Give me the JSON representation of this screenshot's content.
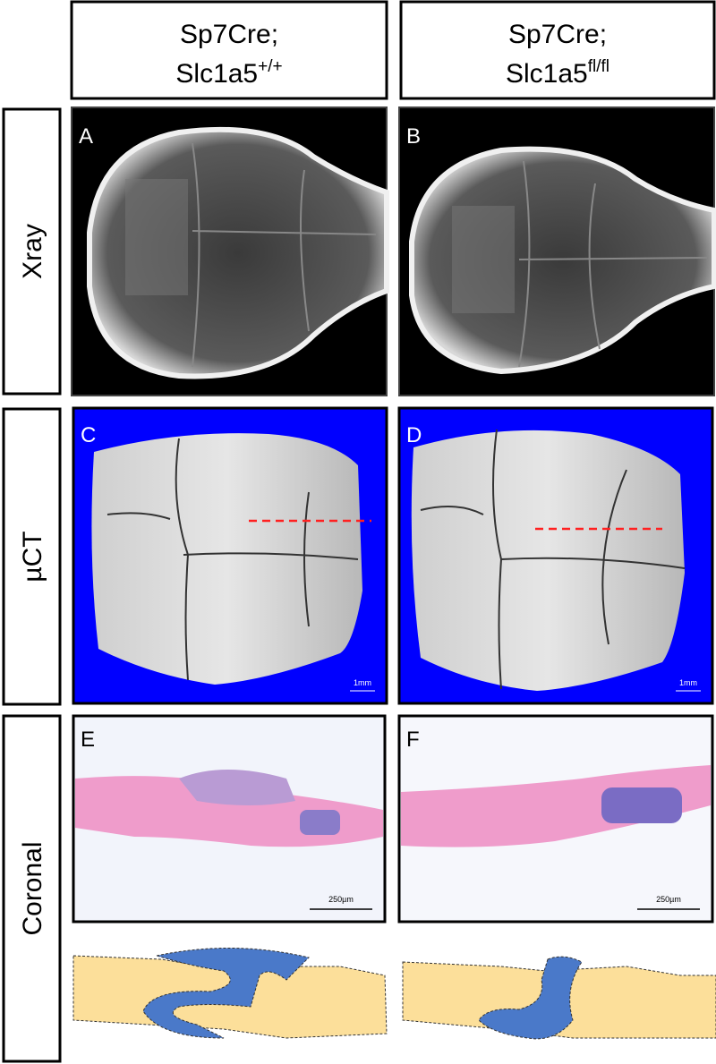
{
  "columns": [
    {
      "line1": "Sp7Cre;",
      "gene": "Slc1a5",
      "superscript": "+/+"
    },
    {
      "line1": "Sp7Cre;",
      "gene": "Slc1a5",
      "superscript": "fl/fl"
    }
  ],
  "rows": [
    {
      "label": "Xray",
      "panels": [
        {
          "letter": "A"
        },
        {
          "letter": "B"
        }
      ]
    },
    {
      "label": "µCT",
      "panels": [
        {
          "letter": "C",
          "scale_bar": "1mm"
        },
        {
          "letter": "D",
          "scale_bar": "1mm"
        }
      ]
    },
    {
      "label": "Coronal",
      "panels": [
        {
          "letter": "E",
          "scale_bar": "250µm"
        },
        {
          "letter": "F",
          "scale_bar": "250µm"
        }
      ]
    }
  ]
}
